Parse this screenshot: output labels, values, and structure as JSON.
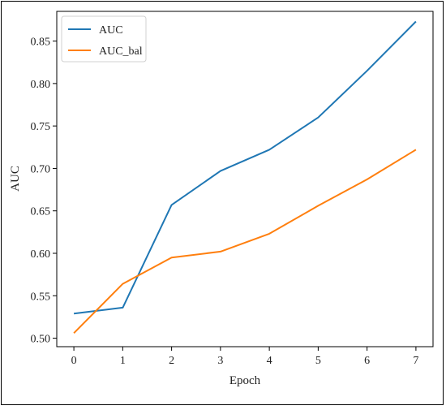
{
  "chart_data": {
    "type": "line",
    "title": "",
    "xlabel": "Epoch",
    "ylabel": "AUC",
    "x": [
      0,
      1,
      2,
      3,
      4,
      5,
      6,
      7
    ],
    "xlim": [
      -0.35,
      7.35
    ],
    "ylim": [
      0.49,
      0.885
    ],
    "xticks": [
      0,
      1,
      2,
      3,
      4,
      5,
      6,
      7
    ],
    "yticks": [
      0.5,
      0.55,
      0.6,
      0.65,
      0.7,
      0.75,
      0.8,
      0.85
    ],
    "ytick_labels": [
      "0.50",
      "0.55",
      "0.60",
      "0.65",
      "0.70",
      "0.75",
      "0.80",
      "0.85"
    ],
    "grid": false,
    "legend_position": "top-left",
    "series": [
      {
        "name": "AUC",
        "color": "#1f77b4",
        "values": [
          0.529,
          0.536,
          0.657,
          0.697,
          0.722,
          0.76,
          0.815,
          0.873
        ]
      },
      {
        "name": "AUC_bal",
        "color": "#ff7f0e",
        "values": [
          0.506,
          0.564,
          0.595,
          0.602,
          0.623,
          0.656,
          0.687,
          0.722
        ]
      }
    ]
  }
}
